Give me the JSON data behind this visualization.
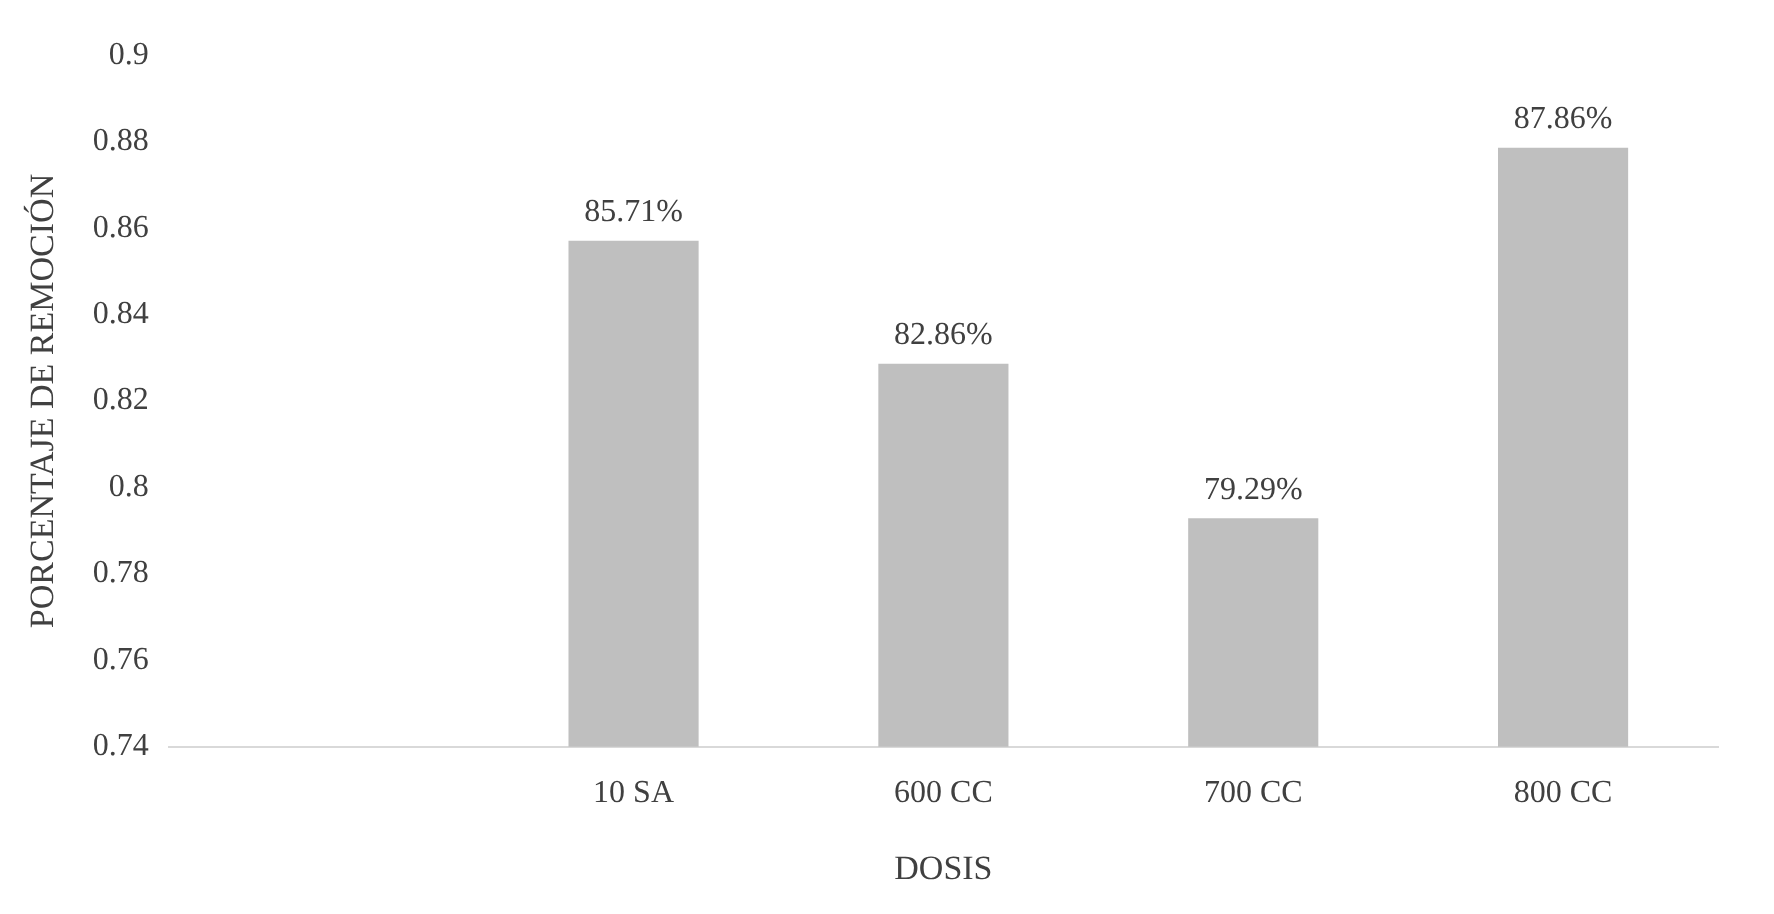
{
  "chart_data": {
    "type": "bar",
    "xlabel": "DOSIS",
    "ylabel": "PORCENTAJE DE REMOCIÓN",
    "categories": [
      null,
      "10 SA",
      "600 CC",
      "700 CC",
      "800 CC"
    ],
    "values": [
      null,
      0.8571,
      0.8286,
      0.7929,
      0.8786
    ],
    "value_labels": [
      null,
      "85.71%",
      "82.86%",
      "79.29%",
      "87.86%"
    ],
    "color": "#bfbfbf",
    "ylim": [
      0.74,
      0.9
    ],
    "yticks": [
      0.74,
      0.76,
      0.78,
      0.8,
      0.82,
      0.84,
      0.86,
      0.88,
      0.9
    ],
    "grid": false,
    "legend": false
  }
}
